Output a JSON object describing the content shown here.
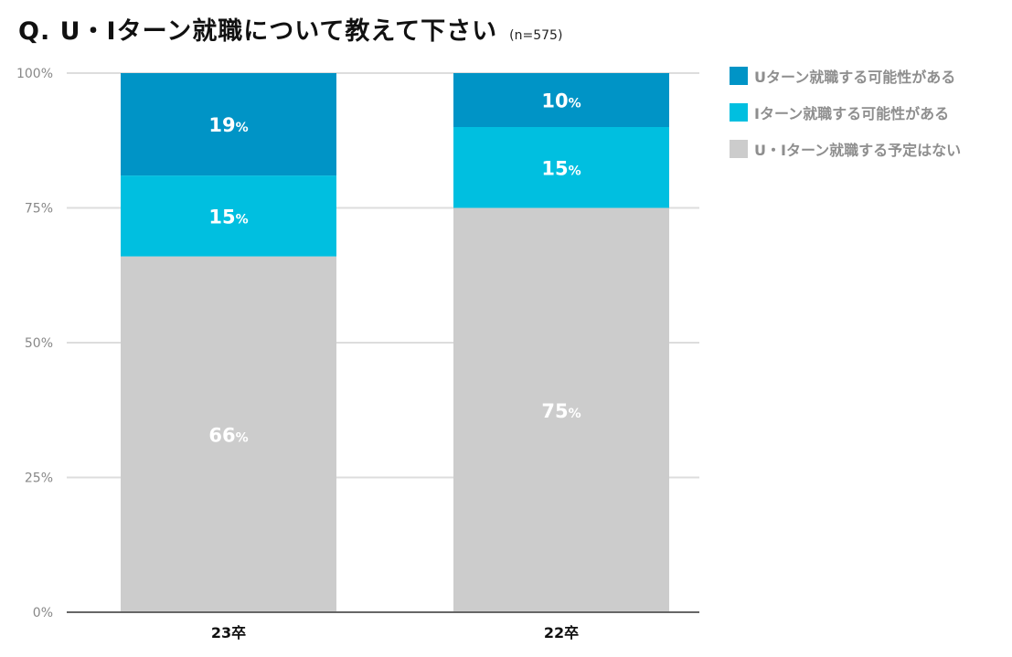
{
  "title": "Q. U・Iターン就職について教えて下さい",
  "subtitle": "(n=575)",
  "chart_data": {
    "type": "bar",
    "stacked": true,
    "categories": [
      "23卒",
      "22卒"
    ],
    "series": [
      {
        "name": "U・Iターン就職する予定はない",
        "values": [
          66,
          75
        ],
        "color": "#cccccc"
      },
      {
        "name": "Iターン就職する可能性がある",
        "values": [
          15,
          15
        ],
        "color": "#00bfe0"
      },
      {
        "name": "Uターン就職する可能性がある",
        "values": [
          19,
          10
        ],
        "color": "#0094c6"
      }
    ],
    "value_suffix": "%",
    "ylim": [
      0,
      100
    ],
    "yticks": [
      0,
      25,
      50,
      75,
      100
    ],
    "ytick_labels": [
      "0%",
      "25%",
      "50%",
      "75%",
      "100%"
    ],
    "xlabel": "",
    "ylabel": "",
    "grid": true,
    "legend": {
      "position": "right",
      "entries": [
        {
          "label": "Uターン就職する可能性がある",
          "color": "#0094c6"
        },
        {
          "label": "Iターン就職する可能性がある",
          "color": "#00bfe0"
        },
        {
          "label": "U・Iターン就職する予定はない",
          "color": "#cccccc"
        }
      ]
    }
  }
}
